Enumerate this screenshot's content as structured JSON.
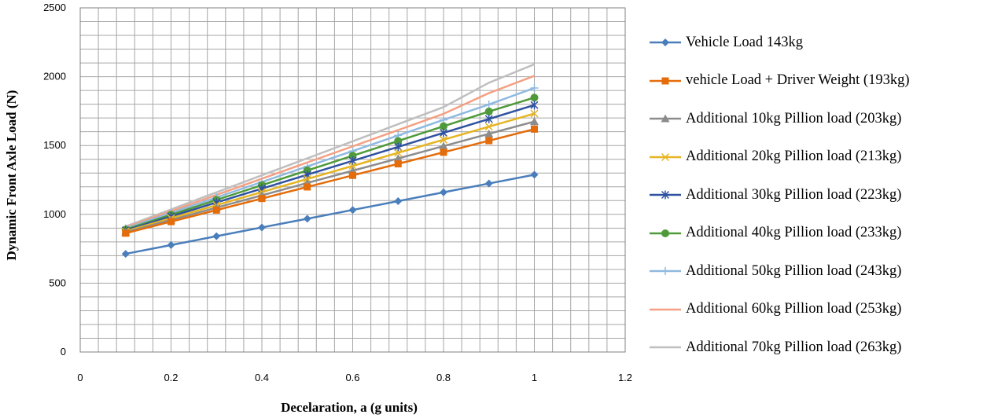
{
  "chart_data": {
    "type": "line",
    "title": "",
    "xlabel": "Decelaration, a (g units)",
    "ylabel": "Dynamic Front Axle Load (N)",
    "xlim": [
      0,
      1.2
    ],
    "ylim": [
      0,
      2500
    ],
    "x_ticks": [
      0,
      0.2,
      0.4,
      0.6,
      0.8,
      1,
      1.2
    ],
    "x_tick_labels": [
      "0",
      "0.2",
      "0.4",
      "0.6",
      "0.8",
      "1",
      "1.2"
    ],
    "y_ticks": [
      0,
      500,
      1000,
      1500,
      2000,
      2500
    ],
    "y_tick_labels": [
      "0",
      "500",
      "1000",
      "1500",
      "2000",
      "2500"
    ],
    "grid": true,
    "legend_position": "right",
    "x": [
      0.1,
      0.2,
      0.3,
      0.4,
      0.5,
      0.6,
      0.7,
      0.8,
      0.9,
      1.0
    ],
    "series": [
      {
        "name": "Vehicle Load 143kg",
        "color": "#4a7ebb",
        "marker": "diamond",
        "values": [
          713,
          777,
          841,
          905,
          968,
          1032,
          1096,
          1160,
          1224,
          1288
        ]
      },
      {
        "name": "vehicle Load + Driver Weight (193kg)",
        "color": "#e46c0a",
        "marker": "square",
        "values": [
          863,
          947,
          1031,
          1115,
          1199,
          1283,
          1367,
          1451,
          1535,
          1619
        ]
      },
      {
        "name": "Additional 10kg Pillion load (203kg)",
        "color": "#8c8c8c",
        "marker": "triangle",
        "values": [
          870,
          959,
          1049,
          1138,
          1228,
          1317,
          1406,
          1496,
          1585,
          1674
        ]
      },
      {
        "name": "Additional 20kg Pillion load (213kg)",
        "color": "#e6b422",
        "marker": "x",
        "values": [
          877,
          972,
          1067,
          1162,
          1257,
          1352,
          1447,
          1542,
          1637,
          1732
        ]
      },
      {
        "name": "Additional 30kg Pillion load (223kg)",
        "color": "#2f52a0",
        "marker": "star",
        "values": [
          883,
          985,
          1086,
          1187,
          1288,
          1389,
          1490,
          1592,
          1693,
          1794
        ]
      },
      {
        "name": "Additional 40kg Pillion load (233kg)",
        "color": "#4e9a3a",
        "marker": "circle",
        "values": [
          890,
          997,
          1105,
          1212,
          1319,
          1426,
          1533,
          1640,
          1747,
          1848
        ]
      },
      {
        "name": "Additional 50kg Pillion load (243kg)",
        "color": "#8fb9e0",
        "marker": "plus",
        "values": [
          898,
          1010,
          1123,
          1235,
          1348,
          1460,
          1573,
          1686,
          1798,
          1918
        ]
      },
      {
        "name": "Additional 60kg Pillion load (253kg)",
        "color": "#f4a082",
        "marker": "none",
        "values": [
          905,
          1023,
          1141,
          1259,
          1377,
          1494,
          1612,
          1730,
          1881,
          2006
        ]
      },
      {
        "name": "Additional 70kg Pillion load (263kg)",
        "color": "#bfbfbf",
        "marker": "none",
        "values": [
          912,
          1036,
          1160,
          1284,
          1407,
          1531,
          1655,
          1779,
          1956,
          2090
        ]
      }
    ]
  }
}
